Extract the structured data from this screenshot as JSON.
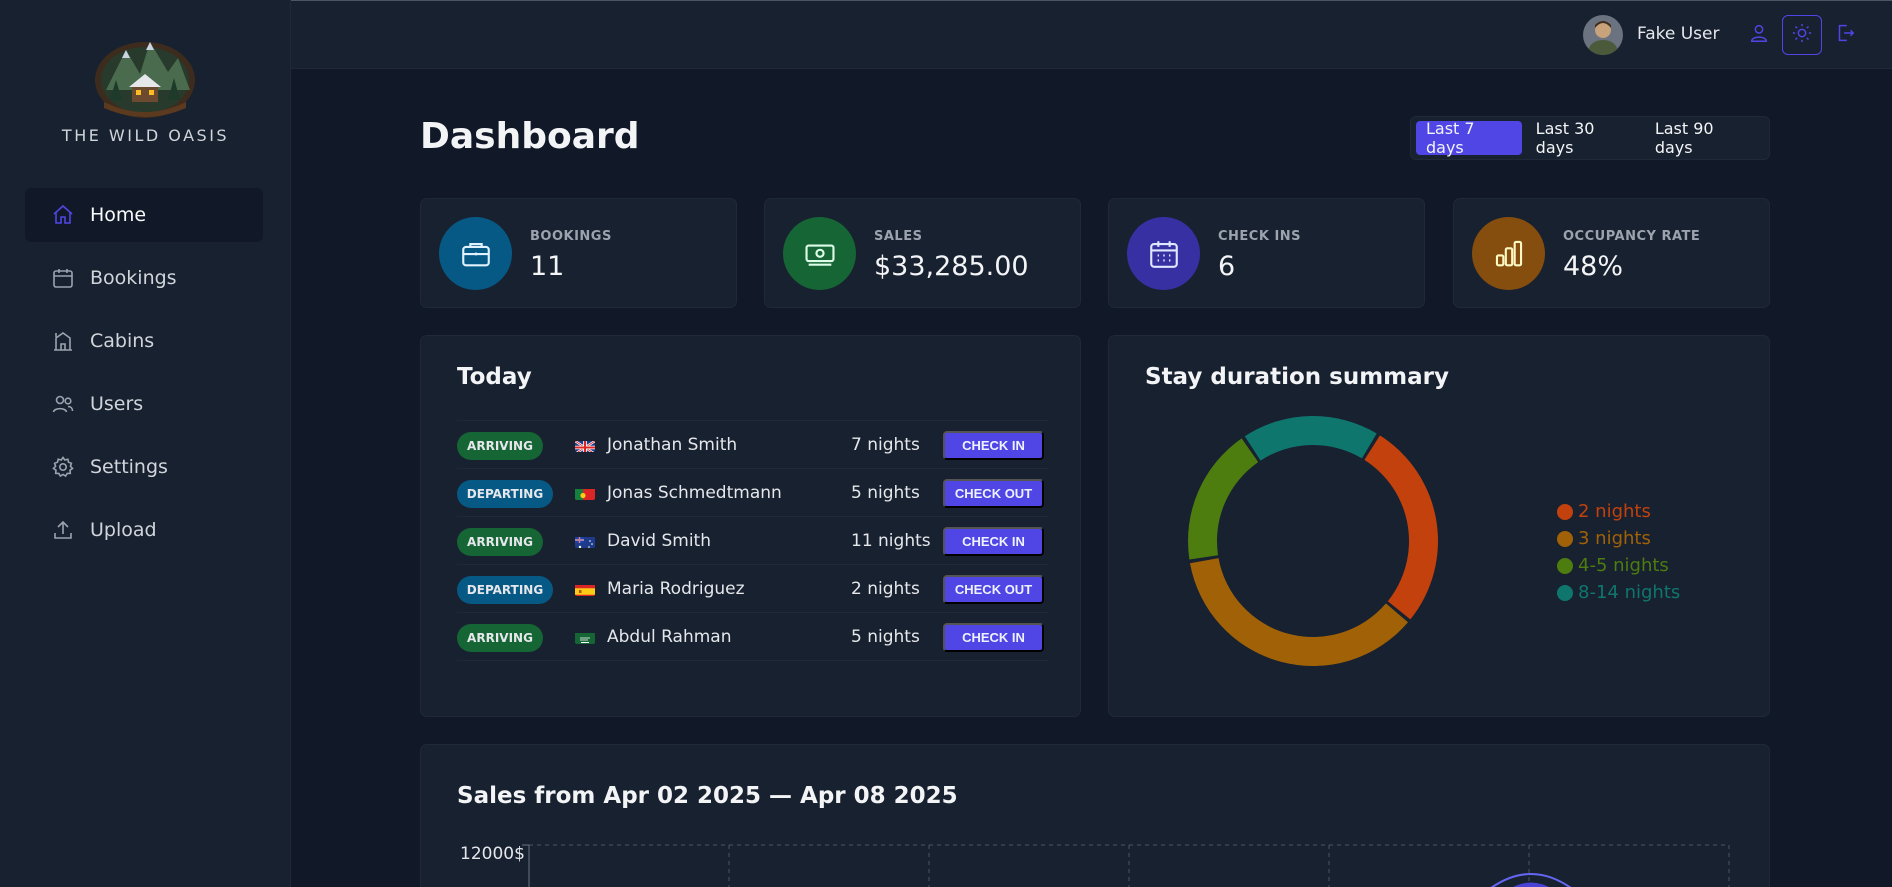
{
  "app": {
    "name": "THE WILD OASIS"
  },
  "sidebar": {
    "items": [
      {
        "label": "Home",
        "icon": "home-icon",
        "active": true
      },
      {
        "label": "Bookings",
        "icon": "calendar-icon"
      },
      {
        "label": "Cabins",
        "icon": "cabin-icon"
      },
      {
        "label": "Users",
        "icon": "users-icon"
      },
      {
        "label": "Settings",
        "icon": "gear-icon"
      },
      {
        "label": "Upload",
        "icon": "upload-icon"
      }
    ]
  },
  "header": {
    "user_name": "Fake User"
  },
  "main": {
    "title": "Dashboard",
    "filters": [
      "Last 7 days",
      "Last 30 days",
      "Last 90 days"
    ],
    "active_filter": "Last 7 days"
  },
  "stats": [
    {
      "label": "BOOKINGS",
      "value": "11",
      "color": "#075985",
      "icon": "briefcase-icon"
    },
    {
      "label": "SALES",
      "value": "$33,285.00",
      "color": "#166534",
      "icon": "banknotes-icon"
    },
    {
      "label": "CHECK INS",
      "value": "6",
      "color": "#3730a3",
      "icon": "calendar-days-icon"
    },
    {
      "label": "OCCUPANCY RATE",
      "value": "48%",
      "color": "#854d0e",
      "icon": "chart-bar-icon"
    }
  ],
  "today": {
    "title": "Today",
    "rows": [
      {
        "status": "ARRIVING",
        "guest": "Jonathan Smith",
        "nights": "7 nights",
        "action": "CHECK IN",
        "flag": "gb"
      },
      {
        "status": "DEPARTING",
        "guest": "Jonas Schmedtmann",
        "nights": "5 nights",
        "action": "CHECK OUT",
        "flag": "pt"
      },
      {
        "status": "ARRIVING",
        "guest": "David Smith",
        "nights": "11 nights",
        "action": "CHECK IN",
        "flag": "au"
      },
      {
        "status": "DEPARTING",
        "guest": "Maria Rodriguez",
        "nights": "2 nights",
        "action": "CHECK OUT",
        "flag": "es"
      },
      {
        "status": "ARRIVING",
        "guest": "Abdul Rahman",
        "nights": "5 nights",
        "action": "CHECK IN",
        "flag": "sa"
      }
    ]
  },
  "duration": {
    "title": "Stay duration summary",
    "legend": [
      {
        "label": "2 nights",
        "color": "#c2410c"
      },
      {
        "label": "3 nights",
        "color": "#a16207"
      },
      {
        "label": "4-5 nights",
        "color": "#4d7c0f"
      },
      {
        "label": "8-14 nights",
        "color": "#0f766e"
      }
    ]
  },
  "chart_data": {
    "type": "pie",
    "title": "Stay duration summary",
    "categories": [
      "2 nights",
      "3 nights",
      "4-5 nights",
      "8-14 nights"
    ],
    "values": [
      3,
      4,
      2,
      2
    ]
  },
  "sales": {
    "title": "Sales from Apr 02 2025 — Apr 08 2025",
    "y_top_label": "12000$"
  }
}
